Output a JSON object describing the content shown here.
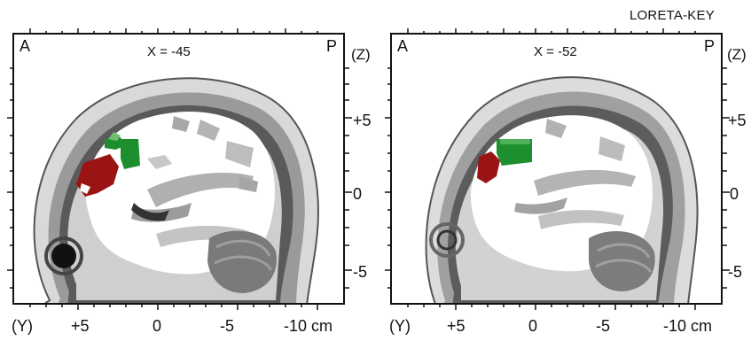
{
  "header": {
    "software_label": "LORETA-KEY"
  },
  "panels": [
    {
      "slice_label": "X = -45",
      "anterior_label": "A",
      "posterior_label": "P"
    },
    {
      "slice_label": "X = -52",
      "anterior_label": "A",
      "posterior_label": "P"
    }
  ],
  "z_axis": {
    "label": "(Z)",
    "ticks": [
      "+5",
      "0",
      "-5"
    ]
  },
  "y_axis": {
    "label": "(Y)",
    "ticks": [
      "+5",
      "0",
      "-5",
      "-10 cm"
    ]
  },
  "colors": {
    "activation_red": "#9b1414",
    "activation_green": "#1e8f2e",
    "skull_gray": "#8a8a8a"
  }
}
